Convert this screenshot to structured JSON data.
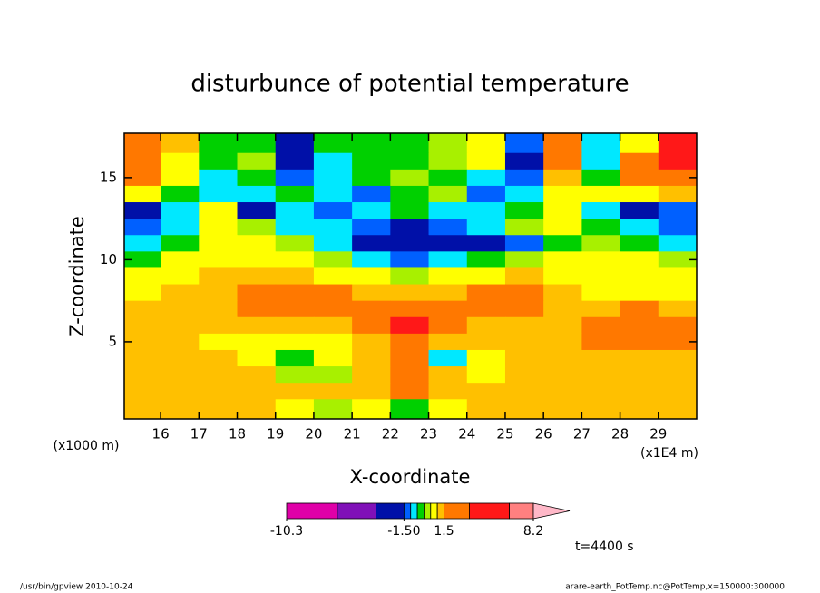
{
  "chart_data": {
    "type": "contour",
    "title": "disturbunce of potential temperature",
    "x_label": "X-coordinate",
    "y_label": "Z-coordinate",
    "x_unit": "(x1E4 m)",
    "y_unit": "(x1000 m)",
    "annotation": "t=4400 s",
    "footer_left": "/usr/bin/gpview  2010-10-24",
    "footer_right": "arare-earth_PotTemp.nc@PotTemp,x=150000:300000",
    "xlim": [
      15.05,
      30.0
    ],
    "ylim": [
      0.3,
      17.7
    ],
    "xticks": [
      16,
      17,
      18,
      19,
      20,
      21,
      22,
      23,
      24,
      25,
      26,
      27,
      28,
      29
    ],
    "yticks": [
      5,
      10,
      15
    ],
    "x": [
      15.5,
      16.5,
      17.5,
      18.5,
      19.5,
      20.5,
      21.5,
      22.5,
      23.5,
      24.5,
      25.5,
      26.5,
      27.5,
      28.5,
      29.5
    ],
    "y": [
      17,
      16,
      15,
      14,
      13,
      12,
      11,
      10,
      9,
      8,
      7,
      6,
      5,
      4,
      3,
      2,
      1
    ],
    "z": [
      [
        2.5,
        1.2,
        -0.3,
        -0.3,
        -2,
        -0.3,
        -0.3,
        -0.2,
        0.2,
        0.7,
        -1.2,
        3,
        -0.8,
        0.8,
        4
      ],
      [
        3,
        0.8,
        -0.3,
        0.2,
        -2.5,
        -0.7,
        -0.3,
        -0.2,
        0.3,
        0.8,
        -2,
        2.5,
        -0.8,
        2,
        4.5
      ],
      [
        2.5,
        0.7,
        -0.7,
        -0.3,
        -1.2,
        -0.8,
        -0.4,
        0.1,
        -0.2,
        -0.7,
        -1.2,
        1.2,
        -0.3,
        2,
        2.5
      ],
      [
        0.7,
        -0.2,
        -0.8,
        -0.7,
        -0.3,
        -0.8,
        -1.2,
        -0.3,
        0.2,
        -1.2,
        -0.8,
        0.8,
        0.6,
        0.8,
        1.2
      ],
      [
        -2,
        -0.8,
        0.6,
        -1.8,
        -0.8,
        -1.2,
        -0.8,
        -0.2,
        -0.7,
        -0.8,
        -0.2,
        0.7,
        -0.8,
        -2,
        -1.3
      ],
      [
        -1.3,
        -0.8,
        0.6,
        0.3,
        -0.7,
        -0.8,
        -1.3,
        -2,
        -1.4,
        -0.8,
        0.2,
        0.6,
        -0.2,
        -0.8,
        -1.2
      ],
      [
        -0.7,
        -0.2,
        0.8,
        0.7,
        0.2,
        -0.7,
        -2,
        -2.2,
        -2,
        -1.8,
        -1.2,
        -0.2,
        0.3,
        -0.3,
        -0.8
      ],
      [
        -0.2,
        0.7,
        0.9,
        0.8,
        0.7,
        0.2,
        -0.7,
        -1.2,
        -0.9,
        -0.3,
        0.3,
        0.7,
        0.8,
        0.7,
        0.3
      ],
      [
        0.7,
        0.9,
        1.2,
        1.3,
        1.2,
        0.9,
        0.7,
        0.3,
        0.6,
        0.8,
        1.1,
        0.9,
        0.9,
        0.8,
        0.7
      ],
      [
        0.8,
        1.1,
        1.3,
        2,
        2.5,
        2.2,
        1.4,
        1.2,
        1.3,
        2,
        2.5,
        1.2,
        0.9,
        0.9,
        0.8
      ],
      [
        1.1,
        1.2,
        1.3,
        2.5,
        3,
        3,
        2.5,
        2.6,
        2.6,
        2.5,
        2.4,
        1.3,
        1.2,
        2,
        1.2
      ],
      [
        1.3,
        1.3,
        1.2,
        1.3,
        1.4,
        1.4,
        2,
        4,
        2.2,
        1.3,
        1.2,
        1.2,
        2.3,
        2.8,
        2.2
      ],
      [
        1.3,
        1.2,
        0.9,
        0.8,
        0.7,
        0.9,
        1.3,
        2.8,
        1.3,
        1.2,
        1.2,
        1.3,
        2.5,
        2.8,
        2.4
      ],
      [
        1.2,
        1.1,
        1.2,
        0.7,
        -0.3,
        0.7,
        1.3,
        2.2,
        -0.8,
        0.9,
        1.1,
        1.3,
        1.4,
        1.3,
        1.2
      ],
      [
        1.2,
        1.3,
        1.4,
        1.3,
        0.3,
        0.2,
        1.3,
        2.4,
        1.2,
        0.8,
        1.0,
        1.2,
        1.3,
        1.2,
        1.2
      ],
      [
        1.3,
        1.2,
        1.2,
        1.2,
        1.3,
        1.3,
        1.4,
        2.2,
        1.3,
        1.2,
        1.2,
        1.3,
        1.2,
        1.2,
        1.3
      ],
      [
        1.2,
        1.1,
        1.2,
        1.1,
        0.8,
        0.3,
        0.8,
        -0.3,
        0.6,
        1.1,
        1.2,
        1.2,
        1.3,
        1.2,
        1.2
      ]
    ],
    "levels": [
      -10.3,
      -6.5,
      -3.6,
      -1.5,
      -1.0,
      -0.5,
      0,
      0.5,
      1.0,
      1.5,
      3.4,
      6.4,
      8.2
    ],
    "colors": [
      "#e000a8",
      "#8010b8",
      "#0010a8",
      "#0060ff",
      "#00e8ff",
      "#00d000",
      "#a8f000",
      "#ffff00",
      "#ffc000",
      "#ff7800",
      "#ff1818",
      "#ff8080",
      "#ffb8c8"
    ],
    "colorbar_ticks": [
      -10.3,
      {
        "value": -1.5,
        "label": "-1.50"
      },
      1.5,
      8.2
    ]
  }
}
